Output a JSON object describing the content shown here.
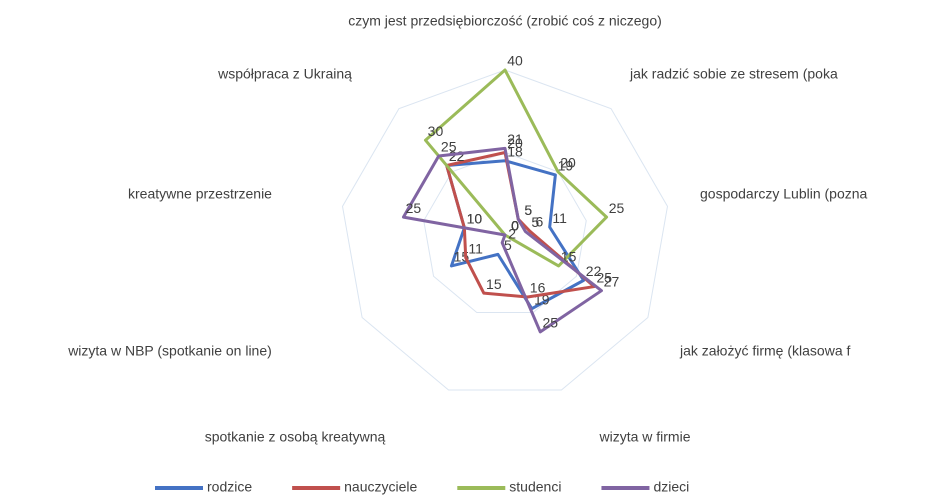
{
  "chart_data": {
    "type": "radar",
    "categories": [
      "czym jest przedsiębiorczość (zrobić coś z niczego)",
      "jak radzić sobie ze stresem (poka",
      "gospodarczy Lublin (pozna",
      "jak założyć firmę (klasowa f",
      "wizyta w firmie",
      "spotkanie z osobą kreatywną",
      "wizyta w NBP (spotkanie on line)",
      "kreatywne przestrzenie",
      "współpraca z Ukrainą"
    ],
    "series": [
      {
        "name": "rodzice",
        "color": "#4472c4",
        "values": [
          18,
          19,
          11,
          22,
          19,
          5,
          15,
          10,
          22
        ]
      },
      {
        "name": "nauczyciele",
        "color": "#c0504d",
        "values": [
          20,
          5,
          6,
          25,
          16,
          15,
          11,
          10,
          22
        ]
      },
      {
        "name": "studenci",
        "color": "#9bbb59",
        "values": [
          40,
          20,
          25,
          15,
          0,
          0,
          0,
          0,
          30
        ]
      },
      {
        "name": "dzieci",
        "color": "#8064a2",
        "values": [
          21,
          5,
          5,
          27,
          25,
          2,
          0,
          25,
          25
        ]
      }
    ],
    "ylim": [
      0,
      40
    ],
    "yticks": [
      0,
      20,
      40
    ],
    "grid": true,
    "legend": "bottom"
  }
}
